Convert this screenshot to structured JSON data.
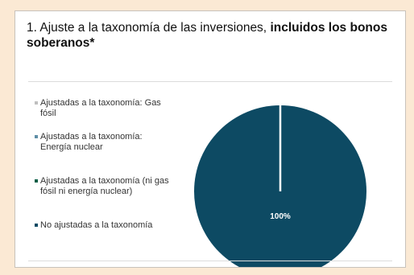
{
  "title": {
    "prefix": "1. Ajuste a la taxonomía de las inversiones, ",
    "bold": "incluidos los bonos soberanos*"
  },
  "colors": {
    "background": "#fbe9d4",
    "pie_main": "#0d4a63",
    "separator": "#ffffff"
  },
  "chart_data": {
    "type": "pie",
    "title": "1. Ajuste a la taxonomía de las inversiones, incluidos los bonos soberanos*",
    "legend_position": "left",
    "slices": [
      {
        "name": "Ajustadas a la taxonomía: Gas fósil",
        "value": 0,
        "color": "#bfbfbf"
      },
      {
        "name": "Ajustadas a la taxonomía: Energía nuclear",
        "value": 0,
        "color": "#5f8ea6"
      },
      {
        "name": "Ajustadas a la taxonomía (ni gas fósil ni energía nuclear)",
        "value": 0,
        "color": "#0b5e46"
      },
      {
        "name": "No ajustadas a la taxonomía",
        "value": 100,
        "color": "#0d4a63"
      }
    ],
    "data_labels": [
      "100%"
    ]
  },
  "legend": {
    "items": [
      {
        "label": "Ajustadas a la taxonomía: Gas fósil",
        "color": "#bfbfbf"
      },
      {
        "label": "Ajustadas a la taxonomía: Energía nuclear",
        "color": "#5f8ea6"
      },
      {
        "label": "Ajustadas a la taxonomía (ni gas fósil ni energía nuclear)",
        "color": "#0b5e46"
      },
      {
        "label": "No ajustadas a la taxonomía",
        "color": "#0d4a63"
      }
    ]
  }
}
